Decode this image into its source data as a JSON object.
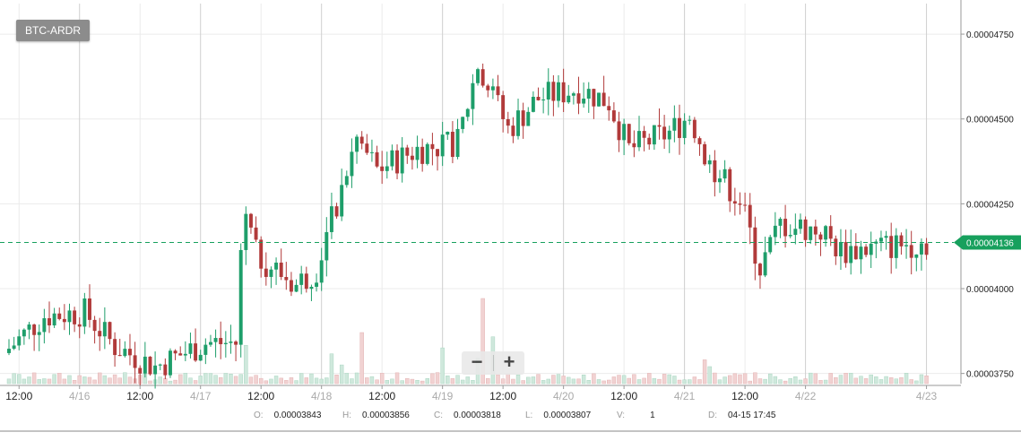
{
  "pair_label": "BTC-ARDR",
  "zoom": {
    "out_label": "−",
    "in_label": "+"
  },
  "ohlc_readout": [
    {
      "key": "O:",
      "value": "0.00003843"
    },
    {
      "key": "H:",
      "value": "0.00003856"
    },
    {
      "key": "C:",
      "value": "0.00003818"
    },
    {
      "key": "L:",
      "value": "0.00003807"
    },
    {
      "key": "V:",
      "value": "1"
    },
    {
      "key": "D:",
      "value": "04-15 17:45"
    }
  ],
  "colors": {
    "up": "#1e9e6a",
    "down": "#b13a3a",
    "up_volume": "#cfe8dc",
    "down_volume": "#f1d2d2",
    "grid": "#ebebeb",
    "last_price": "#17a05d"
  },
  "chart_data": {
    "type": "candlestick",
    "title": "BTC-ARDR",
    "last_price": {
      "value": 4.136e-05,
      "label": "0.00004136"
    },
    "y_ticks": [
      {
        "value": 4.75e-05,
        "label": "0.00004750"
      },
      {
        "value": 4.5e-05,
        "label": "0.00004500"
      },
      {
        "value": 4.25e-05,
        "label": "0.00004250"
      },
      {
        "value": 4e-05,
        "label": "0.00004000"
      },
      {
        "value": 3.75e-05,
        "label": "0.00003750"
      }
    ],
    "ylim": [
      3.72e-05,
      4.84e-05
    ],
    "x_ticks": [
      {
        "t": "2016-04-15 12:00",
        "label": "12:00"
      },
      {
        "t": "2016-04-16 00:00",
        "label": "4/16"
      },
      {
        "t": "2016-04-16 12:00",
        "label": "12:00"
      },
      {
        "t": "2016-04-17 00:00",
        "label": "4/17"
      },
      {
        "t": "2016-04-17 12:00",
        "label": "12:00"
      },
      {
        "t": "2016-04-18 00:00",
        "label": "4/18"
      },
      {
        "t": "2016-04-18 12:00",
        "label": "12:00"
      },
      {
        "t": "2016-04-19 00:00",
        "label": "4/19"
      },
      {
        "t": "2016-04-19 12:00",
        "label": "12:00"
      },
      {
        "t": "2016-04-20 00:00",
        "label": "4/20"
      },
      {
        "t": "2016-04-20 12:00",
        "label": "12:00"
      },
      {
        "t": "2016-04-21 00:00",
        "label": "4/21"
      },
      {
        "t": "2016-04-21 12:00",
        "label": "12:00"
      },
      {
        "t": "2016-04-22 00:00",
        "label": "4/22"
      },
      {
        "t": "2016-04-23 00:00",
        "label": "4/23"
      }
    ],
    "x_range": [
      "2016-04-15 10:00",
      "2016-04-23 01:30"
    ],
    "candle_interval_hours": 1,
    "price_path": [
      {
        "t": "2016-04-15 10:00",
        "p": 3.81e-05
      },
      {
        "t": "2016-04-15 18:00",
        "p": 3.92e-05
      },
      {
        "t": "2016-04-16 02:00",
        "p": 3.93e-05
      },
      {
        "t": "2016-04-16 08:00",
        "p": 3.83e-05
      },
      {
        "t": "2016-04-16 16:00",
        "p": 3.77e-05
      },
      {
        "t": "2016-04-17 02:00",
        "p": 3.84e-05
      },
      {
        "t": "2016-04-17 08:00",
        "p": 3.84e-05
      },
      {
        "t": "2016-04-17 09:00",
        "p": 4.1e-05
      },
      {
        "t": "2016-04-17 10:00",
        "p": 4.22e-05
      },
      {
        "t": "2016-04-17 12:00",
        "p": 4.1e-05
      },
      {
        "t": "2016-04-17 20:00",
        "p": 4.01e-05
      },
      {
        "t": "2016-04-18 00:00",
        "p": 4.06e-05
      },
      {
        "t": "2016-04-18 04:00",
        "p": 4.25e-05
      },
      {
        "t": "2016-04-18 08:00",
        "p": 4.44e-05
      },
      {
        "t": "2016-04-18 12:00",
        "p": 4.35e-05
      },
      {
        "t": "2016-04-18 20:00",
        "p": 4.41e-05
      },
      {
        "t": "2016-04-19 04:00",
        "p": 4.43e-05
      },
      {
        "t": "2016-04-19 08:00",
        "p": 4.66e-05
      },
      {
        "t": "2016-04-19 10:00",
        "p": 4.6e-05
      },
      {
        "t": "2016-04-19 14:00",
        "p": 4.47e-05
      },
      {
        "t": "2016-04-19 20:00",
        "p": 4.56e-05
      },
      {
        "t": "2016-04-20 04:00",
        "p": 4.59e-05
      },
      {
        "t": "2016-04-20 10:00",
        "p": 4.55e-05
      },
      {
        "t": "2016-04-20 14:00",
        "p": 4.41e-05
      },
      {
        "t": "2016-04-20 22:00",
        "p": 4.46e-05
      },
      {
        "t": "2016-04-21 02:00",
        "p": 4.51e-05
      },
      {
        "t": "2016-04-21 06:00",
        "p": 4.37e-05
      },
      {
        "t": "2016-04-21 12:00",
        "p": 4.26e-05
      },
      {
        "t": "2016-04-21 16:00",
        "p": 4.06e-05
      },
      {
        "t": "2016-04-21 20:00",
        "p": 4.19e-05
      },
      {
        "t": "2016-04-22 04:00",
        "p": 4.17e-05
      },
      {
        "t": "2016-04-22 08:00",
        "p": 4.11e-05
      },
      {
        "t": "2016-04-23 00:00",
        "p": 4.136e-05
      }
    ],
    "volume_spikes": [
      {
        "t": "2016-04-17 09:00",
        "v": 0.45
      },
      {
        "t": "2016-04-18 02:00",
        "v": 0.35
      },
      {
        "t": "2016-04-18 04:00",
        "v": 0.22
      },
      {
        "t": "2016-04-18 08:00",
        "v": 0.6
      },
      {
        "t": "2016-04-19 00:00",
        "v": 0.42
      },
      {
        "t": "2016-04-19 07:00",
        "v": 0.3
      },
      {
        "t": "2016-04-19 08:00",
        "v": 1.0
      },
      {
        "t": "2016-04-19 10:00",
        "v": 0.55
      },
      {
        "t": "2016-04-21 04:00",
        "v": 0.28
      },
      {
        "t": "2016-04-21 05:00",
        "v": 0.2
      }
    ],
    "grid": true
  }
}
